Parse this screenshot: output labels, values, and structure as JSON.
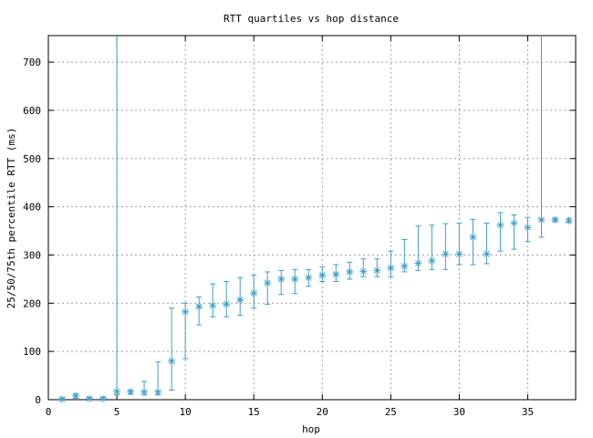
{
  "chart_data": {
    "type": "scatter",
    "title": "RTT quartiles vs hop distance",
    "xlabel": "hop",
    "ylabel": "25/50/75th percentile RTT (ms)",
    "xlim": [
      0,
      38.5
    ],
    "ylim": [
      0,
      755
    ],
    "xticks": [
      0,
      5,
      10,
      15,
      20,
      25,
      30,
      35
    ],
    "yticks": [
      0,
      100,
      200,
      300,
      400,
      500,
      600,
      700
    ],
    "grid": true,
    "color": "#3aa0c8",
    "x": [
      1,
      2,
      3,
      4,
      5,
      6,
      7,
      8,
      9,
      10,
      11,
      12,
      13,
      14,
      15,
      16,
      17,
      18,
      19,
      20,
      21,
      22,
      23,
      24,
      25,
      26,
      27,
      28,
      29,
      30,
      31,
      32,
      33,
      34,
      35,
      36,
      37,
      38
    ],
    "median": [
      1,
      8,
      2,
      2,
      17,
      16,
      16,
      16,
      80,
      182,
      193,
      195,
      198,
      207,
      221,
      242,
      250,
      250,
      253,
      258,
      260,
      265,
      266,
      268,
      273,
      277,
      283,
      288,
      302,
      302,
      337,
      302,
      362,
      366,
      357,
      373,
      373,
      371
    ],
    "q25": [
      0,
      3,
      0,
      0,
      10,
      12,
      10,
      10,
      20,
      85,
      155,
      172,
      172,
      175,
      190,
      198,
      218,
      220,
      235,
      245,
      245,
      250,
      255,
      255,
      255,
      265,
      268,
      270,
      270,
      280,
      280,
      282,
      308,
      312,
      328,
      337,
      370,
      368
    ],
    "q75": [
      3,
      12,
      5,
      5,
      755,
      20,
      38,
      78,
      190,
      200,
      213,
      240,
      245,
      253,
      258,
      265,
      268,
      270,
      270,
      275,
      280,
      285,
      292,
      292,
      308,
      332,
      360,
      362,
      365,
      366,
      374,
      366,
      388,
      383,
      378,
      755,
      376,
      376
    ]
  }
}
